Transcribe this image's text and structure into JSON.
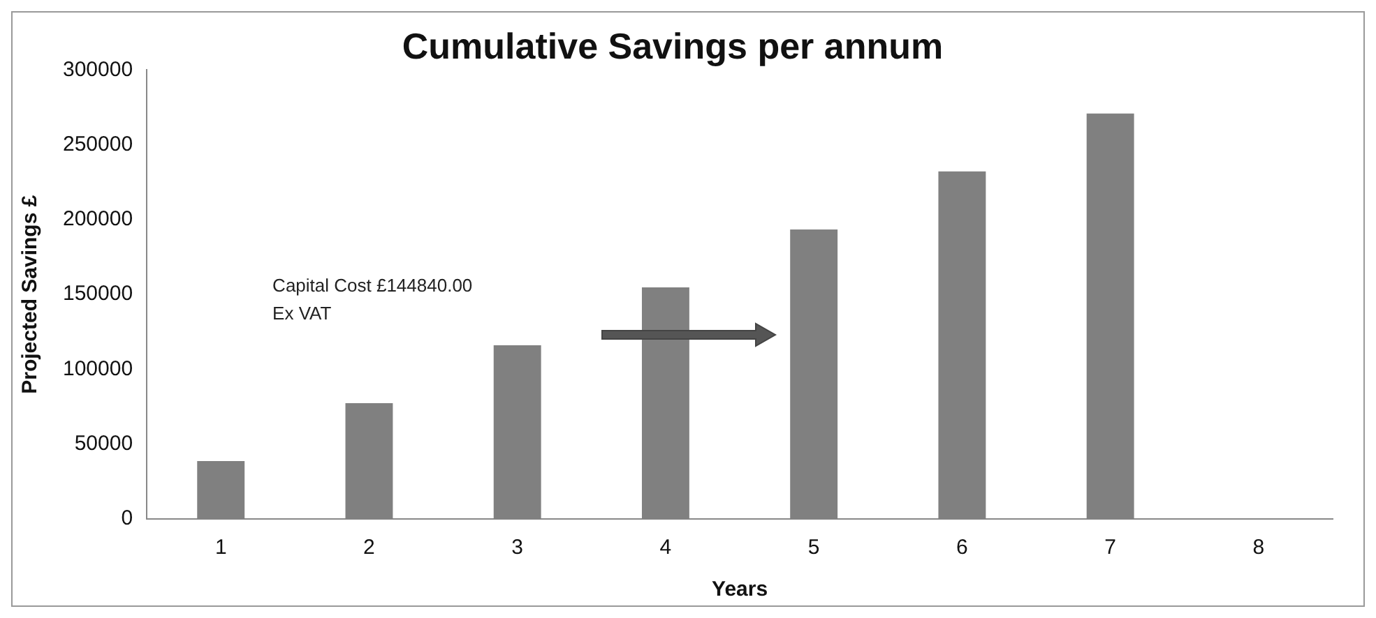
{
  "chart_data": {
    "type": "bar",
    "title": "Cumulative Savings per annum",
    "xlabel": "Years",
    "ylabel": "Projected Savings £",
    "categories": [
      "1",
      "2",
      "3",
      "4",
      "5",
      "6",
      "7",
      "8"
    ],
    "values": [
      38700,
      77400,
      116100,
      154800,
      193500,
      232200,
      270900,
      null
    ],
    "color": "#808080",
    "ylim": [
      0,
      300000
    ],
    "yticks": [
      0,
      50000,
      100000,
      150000,
      200000,
      250000,
      300000
    ],
    "grid": false,
    "annotations": [
      "Capital Cost £144840.00\nEx VAT"
    ]
  }
}
